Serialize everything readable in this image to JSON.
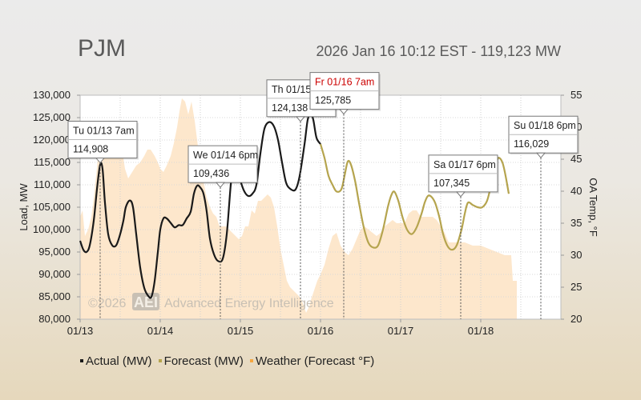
{
  "header": {
    "region": "PJM",
    "status": "2026 Jan 16 10:12 EST - 119,123 MW"
  },
  "watermark": {
    "prefix": "©2026",
    "badge": "AEI",
    "name": "Advanced Energy Intelligence"
  },
  "legend": [
    {
      "label": "Actual (MW)",
      "color": "#1a1a1a"
    },
    {
      "label": "Forecast (MW)",
      "color": "#b5a44e"
    },
    {
      "label": "Weather (Forecast °F)",
      "color": "#f5a640"
    }
  ],
  "colors": {
    "actual": "#1a1a1a",
    "forecast": "#b5a44e",
    "weather": "#fde7cc",
    "tooltip_red": "#cc0000"
  },
  "chart_data": {
    "type": "line",
    "x_unit": "day",
    "xlim": [
      0,
      6
    ],
    "x_ticks": [
      {
        "x": 0,
        "label": "01/13"
      },
      {
        "x": 1,
        "label": "01/14"
      },
      {
        "x": 2,
        "label": "01/15"
      },
      {
        "x": 3,
        "label": "01/16"
      },
      {
        "x": 4,
        "label": "01/17"
      },
      {
        "x": 5,
        "label": "01/18"
      }
    ],
    "ylabel": "Load, MW",
    "ylim": [
      80000,
      130000
    ],
    "y_ticks": [
      80000,
      85000,
      90000,
      95000,
      100000,
      105000,
      110000,
      115000,
      120000,
      125000,
      130000
    ],
    "y_tick_labels": [
      "80,000",
      "85,000",
      "90,000",
      "95,000",
      "100,000",
      "105,000",
      "110,000",
      "115,000",
      "120,000",
      "125,000",
      "130,000"
    ],
    "y2label": "OA Temp, °F",
    "y2lim": [
      20,
      55
    ],
    "y2_ticks": [
      20,
      25,
      30,
      35,
      40,
      45,
      50,
      55
    ],
    "series": [
      {
        "name": "Actual (MW)",
        "points": [
          [
            0.0,
            97500
          ],
          [
            0.04,
            95500
          ],
          [
            0.08,
            95000
          ],
          [
            0.12,
            96500
          ],
          [
            0.17,
            102000
          ],
          [
            0.21,
            109000
          ],
          [
            0.25,
            114500
          ],
          [
            0.28,
            113500
          ],
          [
            0.31,
            106000
          ],
          [
            0.35,
            99000
          ],
          [
            0.4,
            96500
          ],
          [
            0.45,
            96500
          ],
          [
            0.5,
            99000
          ],
          [
            0.54,
            102000
          ],
          [
            0.57,
            105000
          ],
          [
            0.62,
            106500
          ],
          [
            0.66,
            105000
          ],
          [
            0.7,
            99000
          ],
          [
            0.75,
            91500
          ],
          [
            0.8,
            87000
          ],
          [
            0.85,
            85200
          ],
          [
            0.89,
            85000
          ],
          [
            0.93,
            88500
          ],
          [
            0.97,
            95000
          ],
          [
            1.0,
            100000
          ],
          [
            1.04,
            102500
          ],
          [
            1.08,
            102500
          ],
          [
            1.13,
            101500
          ],
          [
            1.18,
            100500
          ],
          [
            1.23,
            101000
          ],
          [
            1.28,
            101000
          ],
          [
            1.33,
            102500
          ],
          [
            1.38,
            104000
          ],
          [
            1.42,
            108000
          ],
          [
            1.46,
            109800
          ],
          [
            1.5,
            109400
          ],
          [
            1.54,
            108000
          ],
          [
            1.58,
            104000
          ],
          [
            1.62,
            98000
          ],
          [
            1.67,
            94500
          ],
          [
            1.72,
            93000
          ],
          [
            1.78,
            93500
          ],
          [
            1.83,
            99000
          ],
          [
            1.88,
            110000
          ],
          [
            1.92,
            115500
          ],
          [
            1.95,
            115000
          ],
          [
            2.0,
            111000
          ],
          [
            2.05,
            108500
          ],
          [
            2.1,
            107500
          ],
          [
            2.15,
            108000
          ],
          [
            2.2,
            110000
          ],
          [
            2.25,
            117000
          ],
          [
            2.3,
            122500
          ],
          [
            2.36,
            124000
          ],
          [
            2.42,
            123000
          ],
          [
            2.47,
            120000
          ],
          [
            2.52,
            115000
          ],
          [
            2.57,
            110500
          ],
          [
            2.63,
            109000
          ],
          [
            2.69,
            109000
          ],
          [
            2.74,
            112000
          ],
          [
            2.8,
            119000
          ],
          [
            2.84,
            124500
          ],
          [
            2.88,
            125800
          ],
          [
            2.91,
            124500
          ],
          [
            2.95,
            120500
          ],
          [
            3.0,
            119100
          ]
        ]
      },
      {
        "name": "Forecast (MW)",
        "points": [
          [
            3.0,
            119100
          ],
          [
            3.05,
            116000
          ],
          [
            3.1,
            112000
          ],
          [
            3.15,
            110000
          ],
          [
            3.2,
            108500
          ],
          [
            3.26,
            109000
          ],
          [
            3.3,
            112000
          ],
          [
            3.34,
            115200
          ],
          [
            3.38,
            114500
          ],
          [
            3.43,
            111000
          ],
          [
            3.48,
            106000
          ],
          [
            3.54,
            100500
          ],
          [
            3.6,
            97000
          ],
          [
            3.66,
            96000
          ],
          [
            3.72,
            96500
          ],
          [
            3.78,
            100000
          ],
          [
            3.84,
            105000
          ],
          [
            3.88,
            107500
          ],
          [
            3.92,
            108500
          ],
          [
            3.97,
            106500
          ],
          [
            4.02,
            103000
          ],
          [
            4.08,
            100000
          ],
          [
            4.14,
            99000
          ],
          [
            4.2,
            100500
          ],
          [
            4.26,
            103500
          ],
          [
            4.3,
            106000
          ],
          [
            4.34,
            107500
          ],
          [
            4.38,
            107400
          ],
          [
            4.43,
            106000
          ],
          [
            4.48,
            103000
          ],
          [
            4.53,
            99000
          ],
          [
            4.58,
            96500
          ],
          [
            4.64,
            95500
          ],
          [
            4.7,
            96500
          ],
          [
            4.76,
            100000
          ],
          [
            4.8,
            103500
          ],
          [
            4.84,
            106000
          ],
          [
            4.9,
            105500
          ],
          [
            4.96,
            105000
          ],
          [
            5.02,
            105000
          ],
          [
            5.08,
            106500
          ],
          [
            5.13,
            110000
          ],
          [
            5.18,
            114000
          ],
          [
            5.22,
            116000
          ],
          [
            5.27,
            115000
          ],
          [
            5.31,
            112000
          ],
          [
            5.35,
            108000
          ]
        ]
      },
      {
        "name": "Weather (Forecast °F)",
        "points": [
          [
            0.0,
            36
          ],
          [
            0.03,
            37
          ],
          [
            0.06,
            33
          ],
          [
            0.1,
            34
          ],
          [
            0.14,
            36
          ],
          [
            0.18,
            40
          ],
          [
            0.22,
            45
          ],
          [
            0.26,
            47
          ],
          [
            0.3,
            46
          ],
          [
            0.34,
            47
          ],
          [
            0.38,
            48
          ],
          [
            0.42,
            49.5
          ],
          [
            0.46,
            49.5
          ],
          [
            0.49,
            46.5
          ],
          [
            0.53,
            46
          ],
          [
            0.56,
            43.5
          ],
          [
            0.6,
            42
          ],
          [
            0.65,
            43
          ],
          [
            0.7,
            44
          ],
          [
            0.75,
            44.5
          ],
          [
            0.8,
            45.5
          ],
          [
            0.84,
            46.5
          ],
          [
            0.88,
            46.5
          ],
          [
            0.93,
            45.5
          ],
          [
            0.97,
            44.5
          ],
          [
            1.0,
            43.5
          ],
          [
            1.04,
            43
          ],
          [
            1.08,
            44
          ],
          [
            1.13,
            45.5
          ],
          [
            1.17,
            47.5
          ],
          [
            1.21,
            50
          ],
          [
            1.24,
            52.5
          ],
          [
            1.27,
            54.5
          ],
          [
            1.31,
            54
          ],
          [
            1.35,
            52
          ],
          [
            1.39,
            54
          ],
          [
            1.43,
            51
          ],
          [
            1.47,
            47
          ],
          [
            1.5,
            44
          ],
          [
            1.54,
            41.5
          ],
          [
            1.58,
            39
          ],
          [
            1.62,
            37.5
          ],
          [
            1.66,
            36.5
          ],
          [
            1.7,
            36
          ],
          [
            1.74,
            34.5
          ],
          [
            1.78,
            34.5
          ],
          [
            1.82,
            34.5
          ],
          [
            1.86,
            34
          ],
          [
            1.9,
            33.5
          ],
          [
            1.94,
            33
          ],
          [
            1.98,
            32.5
          ],
          [
            2.02,
            33
          ],
          [
            2.06,
            34.5
          ],
          [
            2.1,
            34.5
          ],
          [
            2.14,
            37
          ],
          [
            2.18,
            36.5
          ],
          [
            2.22,
            38.5
          ],
          [
            2.26,
            38.5
          ],
          [
            2.3,
            39
          ],
          [
            2.34,
            39.5
          ],
          [
            2.38,
            39
          ],
          [
            2.42,
            37.5
          ],
          [
            2.46,
            34.5
          ],
          [
            2.5,
            31
          ],
          [
            2.54,
            28.5
          ],
          [
            2.58,
            26
          ],
          [
            2.62,
            25
          ],
          [
            2.66,
            24.5
          ],
          [
            2.7,
            24
          ],
          [
            2.74,
            23.5
          ],
          [
            2.78,
            22.5
          ],
          [
            2.82,
            21
          ],
          [
            2.86,
            22
          ],
          [
            2.88,
            23
          ],
          [
            2.92,
            24.5
          ],
          [
            2.96,
            26
          ],
          [
            3.0,
            27
          ],
          [
            3.05,
            28.5
          ],
          [
            3.1,
            31
          ],
          [
            3.15,
            33
          ],
          [
            3.2,
            33.5
          ],
          [
            3.25,
            31.5
          ],
          [
            3.3,
            30.5
          ],
          [
            3.35,
            30
          ],
          [
            3.4,
            31
          ],
          [
            3.45,
            32.5
          ],
          [
            3.5,
            34
          ],
          [
            3.55,
            34.5
          ],
          [
            3.6,
            34
          ],
          [
            3.65,
            33.5
          ],
          [
            3.7,
            33
          ],
          [
            3.75,
            33.5
          ],
          [
            3.8,
            34.5
          ],
          [
            3.85,
            35
          ],
          [
            3.9,
            35.5
          ],
          [
            3.95,
            35
          ],
          [
            4.0,
            35
          ],
          [
            4.05,
            35
          ],
          [
            4.1,
            36.5
          ],
          [
            4.15,
            37
          ],
          [
            4.2,
            37
          ],
          [
            4.25,
            36
          ],
          [
            4.3,
            36
          ],
          [
            4.35,
            36
          ],
          [
            4.4,
            36
          ],
          [
            4.45,
            35.5
          ],
          [
            4.5,
            34.5
          ],
          [
            4.55,
            33.5
          ],
          [
            4.6,
            32
          ],
          [
            4.7,
            32
          ],
          [
            4.8,
            32
          ],
          [
            4.9,
            31.5
          ],
          [
            5.0,
            31.5
          ],
          [
            5.1,
            31
          ],
          [
            5.2,
            30.5
          ],
          [
            5.3,
            30
          ],
          [
            5.38,
            30
          ],
          [
            5.4,
            26
          ],
          [
            5.45,
            26
          ]
        ]
      }
    ],
    "annotations": [
      {
        "x": 0.25,
        "y": 114908,
        "line1": "Tu 01/13 7am",
        "line2": "114,908",
        "red": false,
        "pos": "left"
      },
      {
        "x": 1.75,
        "y": 109436,
        "line1": "We 01/14 6pm",
        "line2": "109,436",
        "red": false,
        "pos": "left"
      },
      {
        "x": 2.75,
        "y": 124138,
        "line1": "Th 01/15",
        "line2": "124,138",
        "red": false,
        "pos": "left-clip"
      },
      {
        "x": 3.29,
        "y": 125785,
        "line1": "Fr 01/16 7am",
        "line2": "125,785",
        "red": true,
        "pos": "right"
      },
      {
        "x": 4.75,
        "y": 107345,
        "line1": "Sa 01/17 6pm",
        "line2": "107,345",
        "red": false,
        "pos": "left"
      },
      {
        "x": 5.75,
        "y": 116029,
        "line1": "Su 01/18 6pm",
        "line2": "116,029",
        "red": false,
        "pos": "left"
      }
    ],
    "grid": true,
    "legend_position": "bottom"
  }
}
